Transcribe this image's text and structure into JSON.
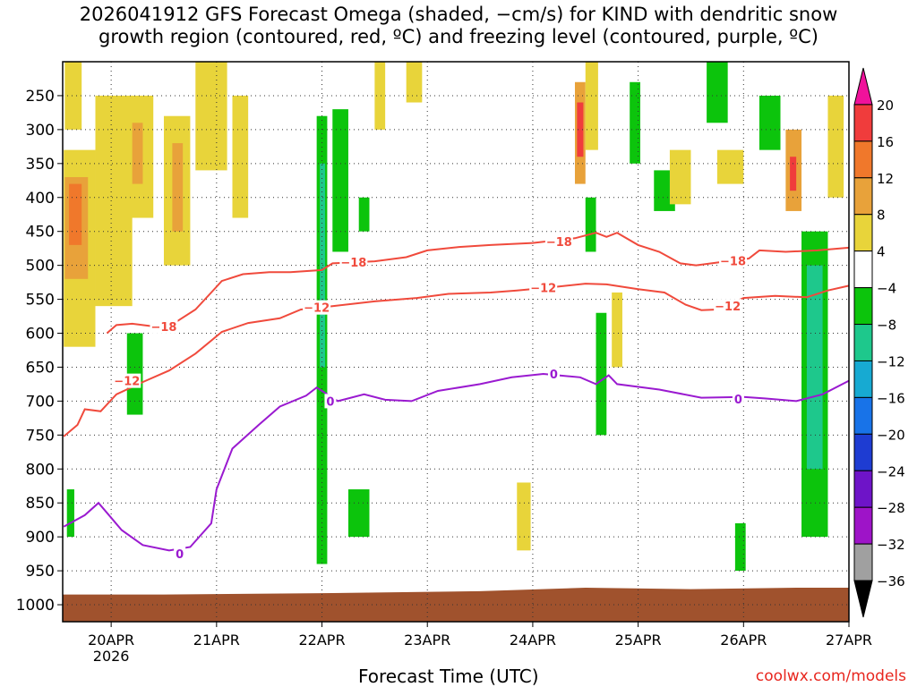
{
  "chart_data": {
    "type": "heatmap",
    "title_lines": [
      "2026041912 GFS Forecast Omega (shaded, −cm/s) for KIND with dendritic snow",
      "growth region (contoured, red, ºC) and freezing level (contoured, purple, ºC)"
    ],
    "xlabel": "Forecast Time (UTC)",
    "ylabel": "",
    "x_ticks": [
      {
        "day": 20.0,
        "label": "20APR"
      },
      {
        "day": 21.0,
        "label": "21APR"
      },
      {
        "day": 22.0,
        "label": "22APR"
      },
      {
        "day": 23.0,
        "label": "23APR"
      },
      {
        "day": 24.0,
        "label": "24APR"
      },
      {
        "day": 25.0,
        "label": "25APR"
      },
      {
        "day": 26.0,
        "label": "26APR"
      },
      {
        "day": 27.0,
        "label": "27APR"
      }
    ],
    "year_label": "2026",
    "x_range_days": [
      19.54,
      27.0
    ],
    "y_ticks": [
      250,
      300,
      350,
      400,
      450,
      500,
      550,
      600,
      650,
      700,
      750,
      800,
      850,
      900,
      950,
      1000
    ],
    "y_range_hpa": [
      200,
      1025
    ],
    "colorbar": {
      "levels": [
        20,
        16,
        12,
        8,
        4,
        -4,
        -8,
        -12,
        -16,
        -20,
        -24,
        -28,
        -32,
        -36
      ],
      "colors": [
        "#f0129b",
        "#f03c3c",
        "#f0782b",
        "#e8a23a",
        "#e8d43a",
        "#ffffff",
        "#0cc40c",
        "#1ec88c",
        "#17aad2",
        "#1873e8",
        "#1e3cd2",
        "#6e14c8",
        "#9e14c8",
        "#a0a0a0",
        "#000000"
      ]
    },
    "shaded_cells": [
      {
        "x0": 19.55,
        "x1": 19.85,
        "p0": 330,
        "p1": 620,
        "color": "#e8d43a"
      },
      {
        "x0": 19.56,
        "x1": 19.78,
        "p0": 370,
        "p1": 520,
        "color": "#e8a23a"
      },
      {
        "x0": 19.6,
        "x1": 19.72,
        "p0": 380,
        "p1": 470,
        "color": "#f0782b"
      },
      {
        "x0": 19.56,
        "x1": 19.72,
        "p0": 200,
        "p1": 300,
        "color": "#e8d43a"
      },
      {
        "x0": 19.85,
        "x1": 20.2,
        "p0": 250,
        "p1": 560,
        "color": "#e8d43a"
      },
      {
        "x0": 20.18,
        "x1": 20.4,
        "p0": 250,
        "p1": 430,
        "color": "#e8d43a"
      },
      {
        "x0": 20.2,
        "x1": 20.3,
        "p0": 290,
        "p1": 380,
        "color": "#e8a23a"
      },
      {
        "x0": 20.5,
        "x1": 20.75,
        "p0": 280,
        "p1": 500,
        "color": "#e8d43a"
      },
      {
        "x0": 20.58,
        "x1": 20.68,
        "p0": 320,
        "p1": 450,
        "color": "#e8a23a"
      },
      {
        "x0": 20.8,
        "x1": 21.1,
        "p0": 200,
        "p1": 360,
        "color": "#e8d43a"
      },
      {
        "x0": 20.15,
        "x1": 20.3,
        "p0": 600,
        "p1": 720,
        "color": "#0cc40c"
      },
      {
        "x0": 19.58,
        "x1": 19.65,
        "p0": 830,
        "p1": 900,
        "color": "#0cc40c"
      },
      {
        "x0": 21.15,
        "x1": 21.3,
        "p0": 250,
        "p1": 430,
        "color": "#e8d43a"
      },
      {
        "x0": 21.95,
        "x1": 22.05,
        "p0": 280,
        "p1": 940,
        "color": "#0cc40c"
      },
      {
        "x0": 21.98,
        "x1": 22.03,
        "p0": 350,
        "p1": 650,
        "color": "#1ec88c"
      },
      {
        "x0": 22.1,
        "x1": 22.25,
        "p0": 270,
        "p1": 480,
        "color": "#0cc40c"
      },
      {
        "x0": 22.35,
        "x1": 22.45,
        "p0": 400,
        "p1": 450,
        "color": "#0cc40c"
      },
      {
        "x0": 22.25,
        "x1": 22.45,
        "p0": 830,
        "p1": 900,
        "color": "#0cc40c"
      },
      {
        "x0": 22.5,
        "x1": 22.6,
        "p0": 200,
        "p1": 300,
        "color": "#e8d43a"
      },
      {
        "x0": 22.8,
        "x1": 22.95,
        "p0": 200,
        "p1": 260,
        "color": "#e8d43a"
      },
      {
        "x0": 23.85,
        "x1": 23.98,
        "p0": 820,
        "p1": 920,
        "color": "#e8d43a"
      },
      {
        "x0": 24.4,
        "x1": 24.5,
        "p0": 230,
        "p1": 380,
        "color": "#e8a23a"
      },
      {
        "x0": 24.42,
        "x1": 24.48,
        "p0": 260,
        "p1": 340,
        "color": "#f03c3c"
      },
      {
        "x0": 24.5,
        "x1": 24.62,
        "p0": 200,
        "p1": 330,
        "color": "#e8d43a"
      },
      {
        "x0": 24.5,
        "x1": 24.6,
        "p0": 400,
        "p1": 480,
        "color": "#0cc40c"
      },
      {
        "x0": 24.6,
        "x1": 24.7,
        "p0": 570,
        "p1": 750,
        "color": "#0cc40c"
      },
      {
        "x0": 24.75,
        "x1": 24.85,
        "p0": 540,
        "p1": 650,
        "color": "#e8d43a"
      },
      {
        "x0": 24.92,
        "x1": 25.02,
        "p0": 230,
        "p1": 350,
        "color": "#0cc40c"
      },
      {
        "x0": 25.15,
        "x1": 25.35,
        "p0": 360,
        "p1": 420,
        "color": "#0cc40c"
      },
      {
        "x0": 25.3,
        "x1": 25.5,
        "p0": 330,
        "p1": 410,
        "color": "#e8d43a"
      },
      {
        "x0": 25.65,
        "x1": 25.85,
        "p0": 200,
        "p1": 290,
        "color": "#0cc40c"
      },
      {
        "x0": 25.75,
        "x1": 26.0,
        "p0": 330,
        "p1": 380,
        "color": "#e8d43a"
      },
      {
        "x0": 26.15,
        "x1": 26.35,
        "p0": 250,
        "p1": 330,
        "color": "#0cc40c"
      },
      {
        "x0": 26.4,
        "x1": 26.55,
        "p0": 300,
        "p1": 420,
        "color": "#e8a23a"
      },
      {
        "x0": 26.44,
        "x1": 26.5,
        "p0": 340,
        "p1": 390,
        "color": "#f03c3c"
      },
      {
        "x0": 26.55,
        "x1": 26.8,
        "p0": 450,
        "p1": 900,
        "color": "#0cc40c"
      },
      {
        "x0": 26.6,
        "x1": 26.75,
        "p0": 500,
        "p1": 800,
        "color": "#1ec88c"
      },
      {
        "x0": 26.8,
        "x1": 26.95,
        "p0": 250,
        "p1": 400,
        "color": "#e8d43a"
      },
      {
        "x0": 25.92,
        "x1": 26.02,
        "p0": 880,
        "p1": 950,
        "color": "#0cc40c"
      }
    ],
    "series": [
      {
        "name": "-18 C (dendritic growth top)",
        "color": "#f04a3c",
        "label": "−18",
        "label_points": [
          {
            "x": 20.5,
            "p": 590
          },
          {
            "x": 22.3,
            "p": 495
          },
          {
            "x": 24.25,
            "p": 465
          },
          {
            "x": 25.9,
            "p": 493
          }
        ],
        "points": [
          {
            "x": 19.96,
            "p": 600
          },
          {
            "x": 20.05,
            "p": 588
          },
          {
            "x": 20.2,
            "p": 586
          },
          {
            "x": 20.4,
            "p": 590
          },
          {
            "x": 20.6,
            "p": 585
          },
          {
            "x": 20.8,
            "p": 565
          },
          {
            "x": 20.95,
            "p": 540
          },
          {
            "x": 21.05,
            "p": 523
          },
          {
            "x": 21.25,
            "p": 513
          },
          {
            "x": 21.5,
            "p": 510
          },
          {
            "x": 21.7,
            "p": 510
          },
          {
            "x": 22.0,
            "p": 507
          },
          {
            "x": 22.1,
            "p": 497
          },
          {
            "x": 22.5,
            "p": 494
          },
          {
            "x": 22.8,
            "p": 488
          },
          {
            "x": 23.0,
            "p": 478
          },
          {
            "x": 23.3,
            "p": 473
          },
          {
            "x": 23.6,
            "p": 470
          },
          {
            "x": 24.0,
            "p": 467
          },
          {
            "x": 24.4,
            "p": 460
          },
          {
            "x": 24.6,
            "p": 452
          },
          {
            "x": 24.7,
            "p": 458
          },
          {
            "x": 24.8,
            "p": 452
          },
          {
            "x": 25.0,
            "p": 470
          },
          {
            "x": 25.2,
            "p": 480
          },
          {
            "x": 25.4,
            "p": 497
          },
          {
            "x": 25.55,
            "p": 500
          },
          {
            "x": 25.8,
            "p": 495
          },
          {
            "x": 26.05,
            "p": 490
          },
          {
            "x": 26.15,
            "p": 478
          },
          {
            "x": 26.4,
            "p": 480
          },
          {
            "x": 26.7,
            "p": 478
          },
          {
            "x": 27.0,
            "p": 474
          }
        ]
      },
      {
        "name": "-12 C (dendritic growth bottom)",
        "color": "#f04a3c",
        "label": "−12",
        "label_points": [
          {
            "x": 20.15,
            "p": 670
          },
          {
            "x": 21.95,
            "p": 562
          },
          {
            "x": 24.1,
            "p": 533
          },
          {
            "x": 25.85,
            "p": 560
          }
        ],
        "points": [
          {
            "x": 19.55,
            "p": 752
          },
          {
            "x": 19.68,
            "p": 735
          },
          {
            "x": 19.75,
            "p": 712
          },
          {
            "x": 19.9,
            "p": 715
          },
          {
            "x": 20.05,
            "p": 690
          },
          {
            "x": 20.3,
            "p": 672
          },
          {
            "x": 20.55,
            "p": 655
          },
          {
            "x": 20.8,
            "p": 630
          },
          {
            "x": 21.05,
            "p": 598
          },
          {
            "x": 21.3,
            "p": 585
          },
          {
            "x": 21.6,
            "p": 578
          },
          {
            "x": 21.8,
            "p": 565
          },
          {
            "x": 22.1,
            "p": 560
          },
          {
            "x": 22.5,
            "p": 553
          },
          {
            "x": 22.9,
            "p": 548
          },
          {
            "x": 23.2,
            "p": 542
          },
          {
            "x": 23.6,
            "p": 540
          },
          {
            "x": 23.85,
            "p": 537
          },
          {
            "x": 24.2,
            "p": 532
          },
          {
            "x": 24.5,
            "p": 527
          },
          {
            "x": 24.7,
            "p": 528
          },
          {
            "x": 25.0,
            "p": 535
          },
          {
            "x": 25.25,
            "p": 540
          },
          {
            "x": 25.45,
            "p": 558
          },
          {
            "x": 25.6,
            "p": 566
          },
          {
            "x": 25.75,
            "p": 565
          },
          {
            "x": 26.0,
            "p": 548
          },
          {
            "x": 26.3,
            "p": 545
          },
          {
            "x": 26.6,
            "p": 547
          },
          {
            "x": 26.8,
            "p": 537
          },
          {
            "x": 27.0,
            "p": 530
          }
        ]
      },
      {
        "name": "0 C (freezing level)",
        "color": "#9a1ad0",
        "label": "0",
        "label_points": [
          {
            "x": 20.65,
            "p": 925
          },
          {
            "x": 22.08,
            "p": 700
          },
          {
            "x": 24.2,
            "p": 660
          },
          {
            "x": 25.95,
            "p": 697
          }
        ],
        "points": [
          {
            "x": 19.55,
            "p": 885
          },
          {
            "x": 19.75,
            "p": 868
          },
          {
            "x": 19.88,
            "p": 850
          },
          {
            "x": 20.1,
            "p": 890
          },
          {
            "x": 20.3,
            "p": 912
          },
          {
            "x": 20.55,
            "p": 920
          },
          {
            "x": 20.75,
            "p": 915
          },
          {
            "x": 20.95,
            "p": 880
          },
          {
            "x": 21.0,
            "p": 830
          },
          {
            "x": 21.15,
            "p": 770
          },
          {
            "x": 21.4,
            "p": 735
          },
          {
            "x": 21.6,
            "p": 708
          },
          {
            "x": 21.85,
            "p": 692
          },
          {
            "x": 21.95,
            "p": 680
          },
          {
            "x": 22.15,
            "p": 700
          },
          {
            "x": 22.4,
            "p": 690
          },
          {
            "x": 22.6,
            "p": 698
          },
          {
            "x": 22.85,
            "p": 700
          },
          {
            "x": 23.1,
            "p": 685
          },
          {
            "x": 23.5,
            "p": 675
          },
          {
            "x": 23.8,
            "p": 665
          },
          {
            "x": 24.1,
            "p": 660
          },
          {
            "x": 24.45,
            "p": 665
          },
          {
            "x": 24.6,
            "p": 675
          },
          {
            "x": 24.72,
            "p": 662
          },
          {
            "x": 24.8,
            "p": 675
          },
          {
            "x": 25.2,
            "p": 683
          },
          {
            "x": 25.6,
            "p": 695
          },
          {
            "x": 26.0,
            "p": 694
          },
          {
            "x": 26.2,
            "p": 696
          },
          {
            "x": 26.5,
            "p": 700
          },
          {
            "x": 26.75,
            "p": 690
          },
          {
            "x": 27.0,
            "p": 670
          }
        ]
      }
    ],
    "terrain": {
      "color": "#a0522d",
      "points": [
        {
          "x": 19.54,
          "p": 985
        },
        {
          "x": 20.5,
          "p": 985
        },
        {
          "x": 22.0,
          "p": 983
        },
        {
          "x": 23.5,
          "p": 980
        },
        {
          "x": 24.5,
          "p": 975
        },
        {
          "x": 25.5,
          "p": 977
        },
        {
          "x": 26.5,
          "p": 975
        },
        {
          "x": 27.0,
          "p": 975
        }
      ]
    }
  },
  "credit": "coolwx.com/models"
}
